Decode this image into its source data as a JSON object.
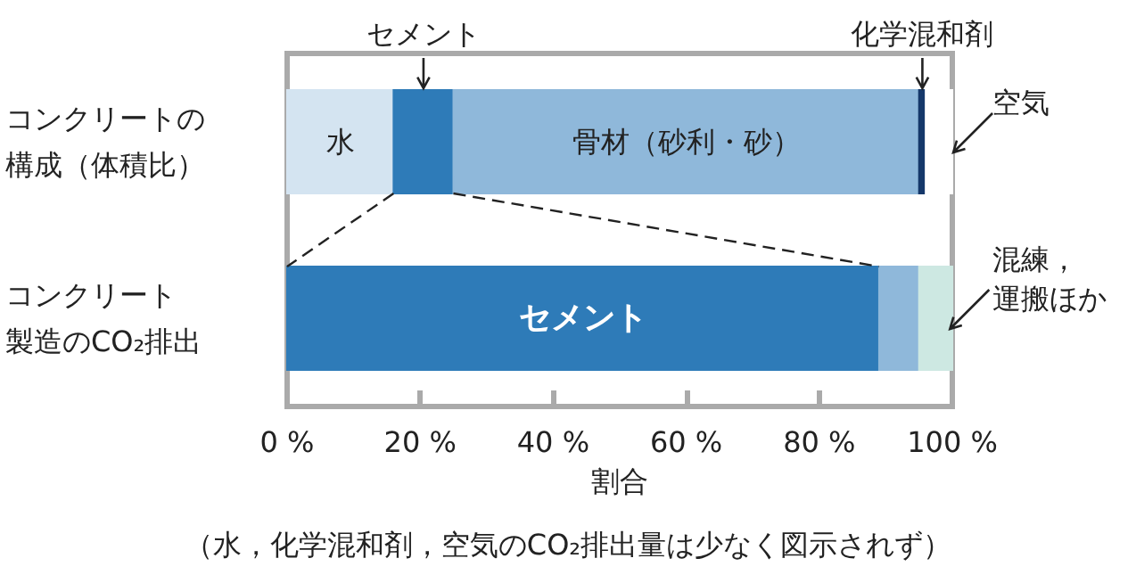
{
  "chart_data": {
    "type": "bar",
    "orientation": "horizontal",
    "stacked": true,
    "categories": [
      "コンクリートの構成（体積比）",
      "コンクリート製造のCO₂排出"
    ],
    "series": [
      {
        "name": "水",
        "color": "#d4e4f1",
        "values": [
          16,
          null
        ]
      },
      {
        "name": "セメント",
        "color": "#2e7bb8",
        "values": [
          9,
          89
        ]
      },
      {
        "name": "骨材（砂利・砂）",
        "color": "#8fb8da",
        "values": [
          70,
          6
        ]
      },
      {
        "name": "化学混和剤",
        "color": "#15386a",
        "values": [
          1,
          null
        ]
      },
      {
        "name": "空気",
        "color": "#ffffff",
        "values": [
          4,
          null
        ]
      },
      {
        "name": "混練，運搬ほか",
        "color": "#cde8e2",
        "values": [
          null,
          5
        ]
      }
    ],
    "xlim": [
      0,
      100
    ],
    "xticks": [
      {
        "value": 0,
        "label": "0 %"
      },
      {
        "value": 20,
        "label": "20 %"
      },
      {
        "value": 40,
        "label": "40 %"
      },
      {
        "value": 60,
        "label": "60 %"
      },
      {
        "value": 80,
        "label": "80 %"
      },
      {
        "value": 100,
        "label": "100 %"
      }
    ],
    "xlabel": "割合",
    "grid": false,
    "legend": false,
    "annotations": [
      "（水，化学混和剤，空気のCO₂排出量は少なく図示されず）"
    ]
  }
}
